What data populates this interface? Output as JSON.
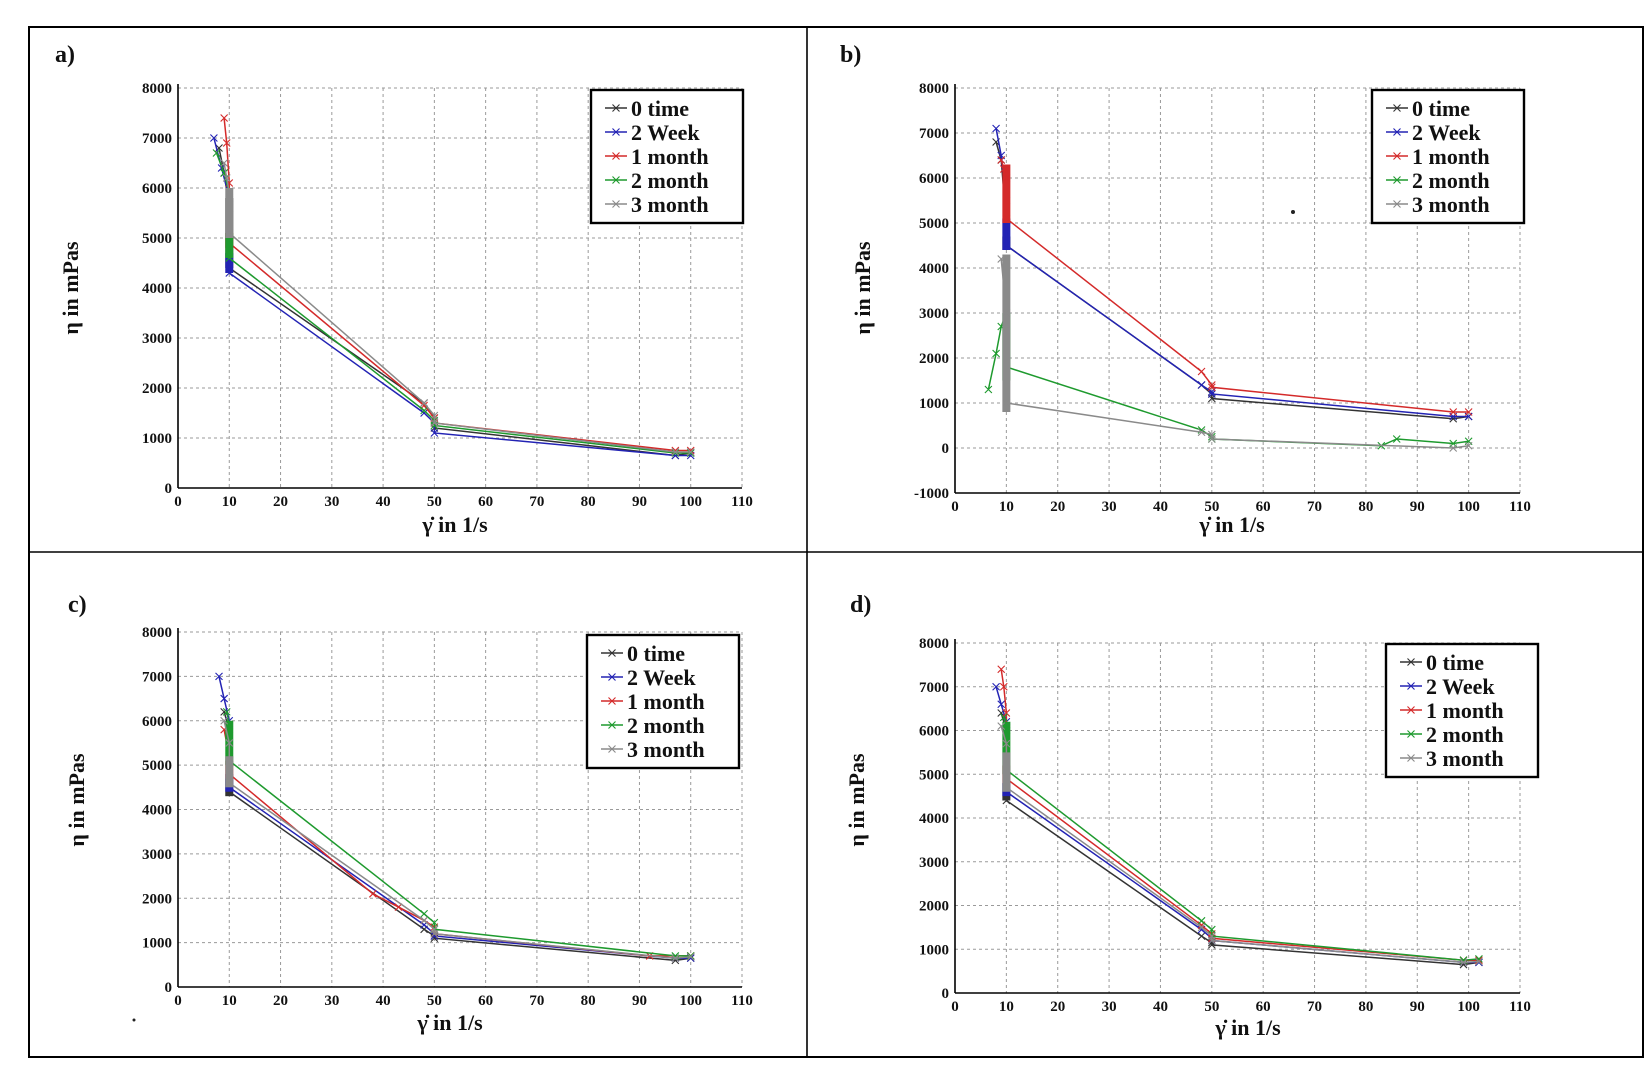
{
  "series_colors": {
    "0 time": "#333333",
    "2 Week": "#2323b4",
    "1 month": "#d42a2a",
    "2 month": "#1e9a2e",
    "3 month": "#8a8a8a"
  },
  "chart_data": [
    {
      "panel_label": "a)",
      "type": "line",
      "xlabel": "γ̇ in 1/s",
      "ylabel": "η in mPas",
      "xlim": [
        0,
        110
      ],
      "ylim": [
        0,
        8000
      ],
      "xticks": [
        0,
        10,
        20,
        30,
        40,
        50,
        60,
        70,
        80,
        90,
        100,
        110
      ],
      "yticks": [
        0,
        1000,
        2000,
        3000,
        4000,
        5000,
        6000,
        7000,
        8000
      ],
      "grid": true,
      "legend": "top-right",
      "series": [
        {
          "name": "0 time",
          "x": [
            8,
            9,
            10,
            10,
            48,
            50,
            50,
            97,
            100
          ],
          "y": [
            6800,
            6300,
            5600,
            4400,
            1700,
            1400,
            1200,
            650,
            700
          ],
          "band": [
            4400,
            5800
          ]
        },
        {
          "name": "2 Week",
          "x": [
            7,
            8.5,
            10,
            10,
            48,
            50,
            50,
            97,
            100
          ],
          "y": [
            7000,
            6400,
            5800,
            4300,
            1500,
            1300,
            1100,
            650,
            650
          ],
          "band": [
            4300,
            4700
          ]
        },
        {
          "name": "1 month",
          "x": [
            9,
            9.5,
            10,
            10,
            48,
            50,
            50,
            97,
            100
          ],
          "y": [
            7400,
            6900,
            6100,
            4900,
            1650,
            1400,
            1300,
            750,
            750
          ],
          "band": [
            4800,
            5100
          ]
        },
        {
          "name": "2 month",
          "x": [
            7.5,
            9,
            10,
            10,
            48,
            50,
            50,
            97,
            100
          ],
          "y": [
            6700,
            6300,
            5900,
            4600,
            1550,
            1350,
            1250,
            700,
            700
          ],
          "band": [
            4600,
            5100
          ]
        },
        {
          "name": "3 month",
          "x": [
            9,
            9.5,
            10,
            10,
            48,
            50,
            50,
            97,
            100
          ],
          "y": [
            6500,
            6200,
            5900,
            5100,
            1700,
            1450,
            1300,
            720,
            720
          ],
          "band": [
            5000,
            6000
          ]
        }
      ]
    },
    {
      "panel_label": "b)",
      "type": "line",
      "xlabel": "γ̇ in 1/s",
      "ylabel": "η in mPas",
      "xlim": [
        0,
        110
      ],
      "ylim": [
        -1000,
        8000
      ],
      "xticks": [
        0,
        10,
        20,
        30,
        40,
        50,
        60,
        70,
        80,
        90,
        100,
        110
      ],
      "yticks": [
        -1000,
        0,
        1000,
        2000,
        3000,
        4000,
        5000,
        6000,
        7000,
        8000
      ],
      "grid": true,
      "legend": "top-right",
      "series": [
        {
          "name": "0 time",
          "x": [
            8,
            9,
            10,
            10,
            48,
            50,
            50,
            97,
            100
          ],
          "y": [
            6800,
            6400,
            5000,
            4500,
            1400,
            1200,
            1100,
            650,
            700
          ],
          "band": [
            4400,
            4700
          ]
        },
        {
          "name": "2 Week",
          "x": [
            8,
            9,
            10,
            10,
            48,
            50,
            50,
            97,
            100
          ],
          "y": [
            7100,
            6500,
            5500,
            4500,
            1400,
            1250,
            1200,
            700,
            700
          ],
          "band": [
            4400,
            5100
          ]
        },
        {
          "name": "1 month",
          "x": [
            9,
            9.5,
            10,
            10,
            48,
            50,
            50,
            97,
            100
          ],
          "y": [
            6400,
            6200,
            6000,
            5100,
            1700,
            1400,
            1350,
            800,
            800
          ],
          "band": [
            5000,
            6300
          ]
        },
        {
          "name": "2 month",
          "x": [
            6.5,
            8,
            9,
            10,
            10,
            48,
            50,
            50,
            83,
            86,
            97,
            100
          ],
          "y": [
            1300,
            2100,
            2700,
            3000,
            1800,
            400,
            250,
            200,
            50,
            200,
            100,
            150
          ],
          "band": [
            1500,
            3000
          ]
        },
        {
          "name": "3 month",
          "x": [
            9,
            10,
            10,
            48,
            50,
            50,
            97,
            100
          ],
          "y": [
            4200,
            3000,
            1000,
            350,
            300,
            200,
            0,
            50
          ],
          "band": [
            800,
            4300
          ]
        }
      ]
    },
    {
      "panel_label": "c)",
      "type": "line",
      "xlabel": "γ̇ in 1/s",
      "ylabel": "η in mPas",
      "xlim": [
        0,
        110
      ],
      "ylim": [
        0,
        8000
      ],
      "xticks": [
        0,
        10,
        20,
        30,
        40,
        50,
        60,
        70,
        80,
        90,
        100,
        110
      ],
      "yticks": [
        0,
        1000,
        2000,
        3000,
        4000,
        5000,
        6000,
        7000,
        8000
      ],
      "grid": true,
      "legend": "top-right",
      "series": [
        {
          "name": "0 time",
          "x": [
            9,
            10,
            10,
            48,
            50,
            50,
            97,
            100
          ],
          "y": [
            6200,
            5800,
            4400,
            1300,
            1150,
            1100,
            600,
            650
          ],
          "band": [
            4300,
            4700
          ]
        },
        {
          "name": "2 Week",
          "x": [
            8,
            9,
            10,
            10,
            48,
            50,
            50,
            97,
            100
          ],
          "y": [
            7000,
            6500,
            6000,
            4500,
            1400,
            1200,
            1150,
            650,
            650
          ],
          "band": [
            4400,
            4800
          ]
        },
        {
          "name": "1 month",
          "x": [
            9,
            10,
            10,
            38,
            43,
            48,
            50,
            50,
            92,
            100
          ],
          "y": [
            5800,
            5200,
            4800,
            2100,
            1800,
            1500,
            1350,
            1200,
            700,
            700
          ],
          "band": [
            4700,
            5100
          ]
        },
        {
          "name": "2 month",
          "x": [
            9.5,
            10,
            10,
            48,
            50,
            50,
            97,
            100
          ],
          "y": [
            6200,
            5900,
            5100,
            1650,
            1450,
            1300,
            700,
            700
          ],
          "band": [
            5000,
            6000
          ]
        },
        {
          "name": "3 month",
          "x": [
            9,
            10,
            10,
            48,
            50,
            50,
            97,
            100
          ],
          "y": [
            6000,
            5500,
            4600,
            1500,
            1300,
            1200,
            650,
            680
          ],
          "band": [
            4500,
            5200
          ]
        }
      ]
    },
    {
      "panel_label": "d)",
      "type": "line",
      "xlabel": "γ̇ in 1/s",
      "ylabel": "η in mPas",
      "xlim": [
        0,
        110
      ],
      "ylim": [
        0,
        8000
      ],
      "xticks": [
        0,
        10,
        20,
        30,
        40,
        50,
        60,
        70,
        80,
        90,
        100,
        110
      ],
      "yticks": [
        0,
        1000,
        2000,
        3000,
        4000,
        5000,
        6000,
        7000,
        8000
      ],
      "grid": true,
      "legend": "top-right",
      "series": [
        {
          "name": "0 time",
          "x": [
            9,
            10,
            10,
            48,
            50,
            50,
            99,
            102
          ],
          "y": [
            6400,
            6000,
            4400,
            1300,
            1150,
            1100,
            650,
            700
          ],
          "band": [
            4400,
            4800
          ]
        },
        {
          "name": "2 Week",
          "x": [
            8,
            9,
            10,
            10,
            48,
            50,
            50,
            99,
            102
          ],
          "y": [
            7000,
            6600,
            6200,
            4600,
            1450,
            1250,
            1200,
            700,
            700
          ],
          "band": [
            4500,
            4800
          ]
        },
        {
          "name": "1 month",
          "x": [
            9,
            9.5,
            10,
            10,
            48,
            50,
            50,
            99,
            102
          ],
          "y": [
            7400,
            7000,
            6400,
            4900,
            1550,
            1350,
            1250,
            750,
            750
          ],
          "band": [
            4800,
            5200
          ]
        },
        {
          "name": "2 month",
          "x": [
            9.5,
            10,
            10,
            48,
            50,
            50,
            99,
            102
          ],
          "y": [
            6300,
            6000,
            5100,
            1650,
            1450,
            1300,
            750,
            780
          ],
          "band": [
            5000,
            6200
          ]
        },
        {
          "name": "3 month",
          "x": [
            9,
            10,
            10,
            48,
            50,
            50,
            99,
            102
          ],
          "y": [
            6100,
            5700,
            4700,
            1500,
            1300,
            1200,
            700,
            720
          ],
          "band": [
            4600,
            5500
          ]
        }
      ]
    }
  ]
}
